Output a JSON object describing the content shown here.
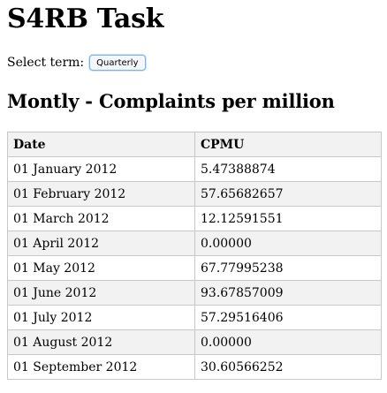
{
  "page_title": "S4RB Task",
  "term": {
    "label": "Select term:",
    "button_label": "Quarterly"
  },
  "section_title": "Montly - Complaints per million",
  "table": {
    "headers": [
      "Date",
      "CPMU"
    ],
    "rows": [
      [
        "01 January 2012",
        "5.47388874"
      ],
      [
        "01 February 2012",
        "57.65682657"
      ],
      [
        "01 March 2012",
        "12.12591551"
      ],
      [
        "01 April 2012",
        "0.00000"
      ],
      [
        "01 May 2012",
        "67.77995238"
      ],
      [
        "01 June 2012",
        "93.67857009"
      ],
      [
        "01 July 2012",
        "57.29516406"
      ],
      [
        "01 August 2012",
        "0.00000"
      ],
      [
        "01 September 2012",
        "30.60566252"
      ]
    ]
  }
}
